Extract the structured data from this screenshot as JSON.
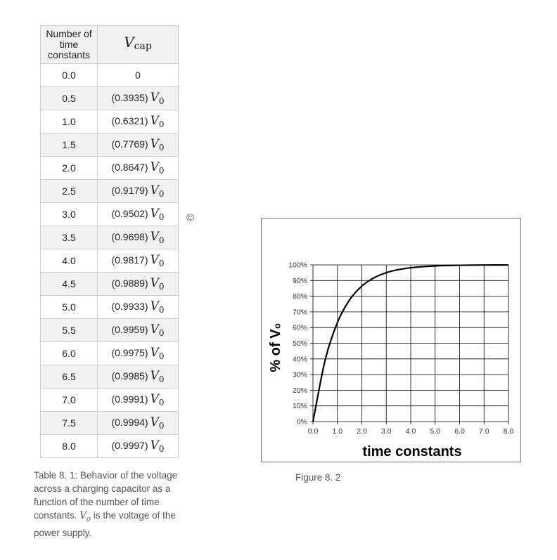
{
  "table": {
    "header_col1": "Number of time constants",
    "header_col2_symbol": "V",
    "header_col2_sub": "cap",
    "symbol": "V",
    "symbol_sub": "0",
    "rows": [
      {
        "t": "0.0",
        "coef": "0",
        "has_v0": false
      },
      {
        "t": "0.5",
        "coef": "(0.3935)",
        "has_v0": true
      },
      {
        "t": "1.0",
        "coef": "(0.6321)",
        "has_v0": true
      },
      {
        "t": "1.5",
        "coef": "(0.7769)",
        "has_v0": true
      },
      {
        "t": "2.0",
        "coef": "(0.8647)",
        "has_v0": true
      },
      {
        "t": "2.5",
        "coef": "(0.9179)",
        "has_v0": true
      },
      {
        "t": "3.0",
        "coef": "(0.9502)",
        "has_v0": true
      },
      {
        "t": "3.5",
        "coef": "(0.9698)",
        "has_v0": true
      },
      {
        "t": "4.0",
        "coef": "(0.9817)",
        "has_v0": true
      },
      {
        "t": "4.5",
        "coef": "(0.9889)",
        "has_v0": true
      },
      {
        "t": "5.0",
        "coef": "(0.9933)",
        "has_v0": true
      },
      {
        "t": "5.5",
        "coef": "(0.9959)",
        "has_v0": true
      },
      {
        "t": "6.0",
        "coef": "(0.9975)",
        "has_v0": true
      },
      {
        "t": "6.5",
        "coef": "(0.9985)",
        "has_v0": true
      },
      {
        "t": "7.0",
        "coef": "(0.9991)",
        "has_v0": true
      },
      {
        "t": "7.5",
        "coef": "(0.9994)",
        "has_v0": true
      },
      {
        "t": "8.0",
        "coef": "(0.9997)",
        "has_v0": true
      }
    ]
  },
  "table_caption": {
    "part1": "Table 8. 1: Behavior of the voltage across a charging capacitor as a function of the number of time constants. ",
    "symbol": "V",
    "sub": "o",
    "part2": " is the voltage of the power supply."
  },
  "copyright": "©",
  "figure_caption": "Figure 8. 2",
  "chart_data": {
    "type": "line",
    "title": "",
    "xlabel": "time constants",
    "ylabel": "% of V₀",
    "xlim": [
      0,
      8
    ],
    "ylim": [
      0,
      100
    ],
    "xticks": [
      "0.0",
      "1.0",
      "2.0",
      "3.0",
      "4.0",
      "5.0",
      "6.0",
      "7.0",
      "8.0"
    ],
    "yticks": [
      "0%",
      "10%",
      "20%",
      "30%",
      "40%",
      "50%",
      "60%",
      "70%",
      "80%",
      "90%",
      "100%"
    ],
    "grid": true,
    "legend": "none",
    "series_color": "#000000",
    "x": [
      0,
      0.5,
      1.0,
      1.5,
      2.0,
      2.5,
      3.0,
      3.5,
      4.0,
      4.5,
      5.0,
      5.5,
      6.0,
      6.5,
      7.0,
      7.5,
      8.0
    ],
    "y": [
      0,
      39.35,
      63.21,
      77.69,
      86.47,
      91.79,
      95.02,
      96.98,
      98.17,
      98.89,
      99.33,
      99.59,
      99.75,
      99.85,
      99.91,
      99.94,
      99.97
    ]
  }
}
